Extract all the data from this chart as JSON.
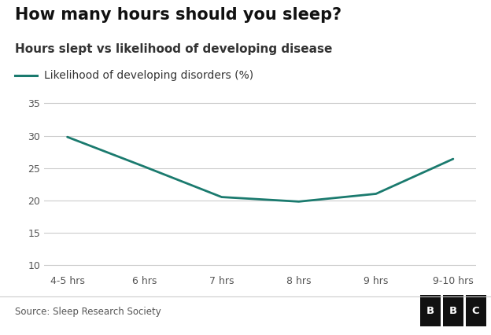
{
  "title": "How many hours should you sleep?",
  "subtitle": "Hours slept vs likelihood of developing disease",
  "legend_label": "Likelihood of developing disorders (%)",
  "x_labels": [
    "4-5 hrs",
    "6 hrs",
    "7 hrs",
    "8 hrs",
    "9 hrs",
    "9-10 hrs"
  ],
  "y_values": [
    29.8,
    25.2,
    20.5,
    19.8,
    21.0,
    26.4
  ],
  "line_color": "#1a7a6e",
  "background_color": "#ffffff",
  "grid_color": "#cccccc",
  "ylim": [
    9,
    37
  ],
  "yticks": [
    10,
    15,
    20,
    25,
    30,
    35
  ],
  "source_text": "Source: Sleep Research Society",
  "bbc_letters": [
    "B",
    "B",
    "C"
  ],
  "title_fontsize": 15,
  "subtitle_fontsize": 11,
  "legend_fontsize": 10,
  "tick_fontsize": 9,
  "source_fontsize": 8.5
}
